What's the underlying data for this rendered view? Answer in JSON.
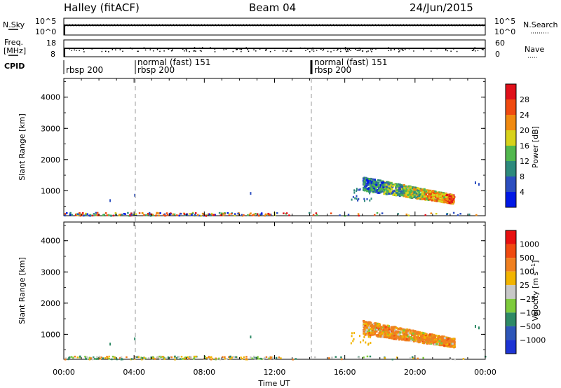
{
  "header": {
    "station": "Halley (fitACF)",
    "beam": "Beam 04",
    "date": "24/Jun/2015"
  },
  "left_labels": {
    "nsky": "N.Sky",
    "freq_line1": "Freq.",
    "freq_line2": "[MHz]",
    "cpid": "CPID"
  },
  "right_labels": {
    "nsearch": "N.Search",
    "nave": "Nave"
  },
  "cpid_segments": [
    {
      "start": 0.0,
      "label": "rbsp 200"
    },
    {
      "start": 4.0,
      "label": "normal (fast) 151"
    },
    {
      "start": 4.0,
      "label": "rbsp 200"
    },
    {
      "start": 14.2,
      "label": "normal (fast) 151"
    },
    {
      "start": 14.2,
      "label": "rbsp 200"
    }
  ],
  "chart_data": [
    {
      "type": "line",
      "title": "N.Sky / N.Search",
      "yticks_left": [
        "10^5",
        "10^0"
      ],
      "yticks_right": [
        "10^5",
        "10^0"
      ],
      "note": "near-constant noise levels across the day"
    },
    {
      "type": "line",
      "title": "Freq. / Nave",
      "yticks_left": [
        "18",
        "8"
      ],
      "yticks_right": [
        "60",
        "0"
      ],
      "freq_mhz": 11.0,
      "nave_range": [
        0,
        60
      ]
    },
    {
      "type": "heatmap",
      "quantity": "power",
      "ylabel": "Slant Range [km]",
      "xlim": [
        0,
        24
      ],
      "ylim": [
        200,
        4600
      ],
      "yticks": [
        1000,
        2000,
        3000,
        4000
      ],
      "colorbar": {
        "label": "Power [dB]",
        "ticks": [
          "4",
          "8",
          "12",
          "16",
          "20",
          "24",
          "28"
        ],
        "colors": [
          "#0018e6",
          "#2c4ec0",
          "#2d8a7c",
          "#52b84e",
          "#d8d21a",
          "#f08a10",
          "#f04a10",
          "#e0101a"
        ]
      },
      "echo_regions": [
        {
          "t_start": 17.0,
          "t_end": 22.2,
          "range_start": 700,
          "range_end": 1500
        },
        {
          "t_start": 0.0,
          "t_end": 24.0,
          "range_start": 200,
          "range_end": 330
        }
      ]
    },
    {
      "type": "heatmap",
      "quantity": "velocity",
      "ylabel": "Slant Range [km]",
      "xlabel": "Time UT",
      "xlim": [
        0,
        24
      ],
      "ylim": [
        200,
        4600
      ],
      "yticks": [
        1000,
        2000,
        3000,
        4000
      ],
      "xticks": [
        "00:00",
        "04:00",
        "08:00",
        "12:00",
        "16:00",
        "20:00",
        "00:00"
      ],
      "colorbar": {
        "label": "Velocity [m s^-1]",
        "ticks": [
          "1000",
          "500",
          "100",
          "25",
          "−25",
          "−100",
          "−500",
          "−1000"
        ],
        "colors": [
          "#1d34d4",
          "#2e56b8",
          "#2e8a66",
          "#7ecb3c",
          "#c8c8c8",
          "#f2b400",
          "#f08020",
          "#f04a10",
          "#e81010"
        ]
      },
      "echo_regions": [
        {
          "t_start": 17.0,
          "t_end": 22.2,
          "range_start": 700,
          "range_end": 1500
        },
        {
          "t_start": 0.0,
          "t_end": 24.0,
          "range_start": 200,
          "range_end": 330
        }
      ]
    }
  ]
}
